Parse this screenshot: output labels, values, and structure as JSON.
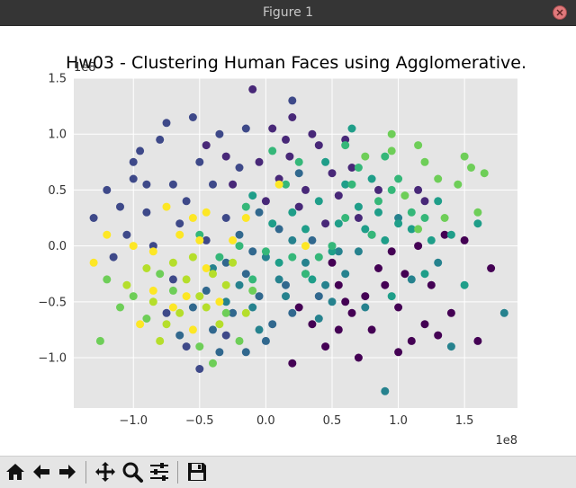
{
  "window": {
    "title": "Figure 1"
  },
  "chart_data": {
    "type": "scatter",
    "title": "Hw03 - Clustering Human Faces using Agglomerative.",
    "xlabel": "",
    "ylabel": "",
    "x_offset_text": "1e8",
    "y_offset_text": "1e8",
    "xlim": [
      -1.45,
      1.9
    ],
    "ylim": [
      -1.45,
      1.5
    ],
    "x_ticks": [
      -1.0,
      -0.5,
      0.0,
      0.5,
      1.0,
      1.5
    ],
    "x_tick_labels": [
      "−1.0",
      "−0.5",
      "0.0",
      "0.5",
      "1.0",
      "1.5"
    ],
    "y_ticks": [
      -1.0,
      -0.5,
      0.0,
      0.5,
      1.0,
      1.5
    ],
    "y_tick_labels": [
      "−1.0",
      "−0.5",
      "0.0",
      "0.5",
      "1.0",
      "1.5"
    ],
    "grid": true,
    "background": "#e5e5e5",
    "colormap": "viridis",
    "series": [
      {
        "color": "#440154",
        "points": [
          [
            0.55,
            -0.35
          ],
          [
            0.65,
            -0.6
          ],
          [
            0.8,
            -0.75
          ],
          [
            1.0,
            -0.55
          ],
          [
            1.2,
            -0.7
          ],
          [
            0.45,
            -0.9
          ],
          [
            0.7,
            -1.0
          ],
          [
            0.9,
            -0.35
          ],
          [
            1.05,
            -0.25
          ],
          [
            1.3,
            -0.8
          ],
          [
            1.6,
            -0.85
          ],
          [
            1.5,
            0.05
          ],
          [
            1.25,
            -0.35
          ],
          [
            1.1,
            -0.85
          ],
          [
            0.35,
            -0.7
          ],
          [
            0.2,
            -1.05
          ],
          [
            0.6,
            -0.5
          ],
          [
            0.85,
            -0.2
          ],
          [
            0.95,
            -0.05
          ],
          [
            1.15,
            0.0
          ],
          [
            1.35,
            0.1
          ],
          [
            0.5,
            -0.15
          ],
          [
            0.25,
            -0.55
          ],
          [
            0.75,
            -0.45
          ],
          [
            1.4,
            -0.6
          ],
          [
            1.7,
            -0.2
          ],
          [
            1.0,
            -0.95
          ],
          [
            0.55,
            -0.75
          ]
        ]
      },
      {
        "color": "#482878",
        "points": [
          [
            -0.1,
            1.4
          ],
          [
            0.2,
            1.15
          ],
          [
            0.4,
            0.9
          ],
          [
            -0.3,
            0.8
          ],
          [
            0.5,
            0.65
          ],
          [
            0.15,
            0.95
          ],
          [
            -0.05,
            0.75
          ],
          [
            0.3,
            0.5
          ],
          [
            0.65,
            0.7
          ],
          [
            0.05,
            1.05
          ],
          [
            0.25,
            0.35
          ],
          [
            -0.25,
            0.55
          ],
          [
            0.45,
            0.2
          ],
          [
            0.1,
            0.6
          ],
          [
            0.35,
            1.0
          ],
          [
            0.55,
            0.45
          ],
          [
            0.7,
            0.25
          ],
          [
            0.85,
            0.5
          ],
          [
            1.15,
            0.5
          ],
          [
            1.2,
            0.4
          ],
          [
            -0.45,
            0.9
          ],
          [
            0.0,
            0.4
          ],
          [
            0.18,
            0.8
          ],
          [
            0.6,
            0.95
          ]
        ]
      },
      {
        "color": "#3e4989",
        "points": [
          [
            -1.3,
            0.25
          ],
          [
            -1.2,
            0.5
          ],
          [
            -1.0,
            0.6
          ],
          [
            -0.9,
            0.3
          ],
          [
            -0.8,
            0.95
          ],
          [
            -0.7,
            0.55
          ],
          [
            -1.05,
            0.1
          ],
          [
            -0.95,
            0.85
          ],
          [
            -0.6,
            0.4
          ],
          [
            -0.75,
            1.1
          ],
          [
            -0.5,
            0.75
          ],
          [
            -0.85,
            0.0
          ],
          [
            -1.15,
            -0.1
          ],
          [
            -0.65,
            0.2
          ],
          [
            -0.4,
            0.55
          ],
          [
            -0.55,
            1.15
          ],
          [
            -0.3,
            0.25
          ],
          [
            -0.9,
            0.55
          ],
          [
            -0.35,
            1.0
          ],
          [
            -0.45,
            0.05
          ],
          [
            -1.0,
            0.75
          ],
          [
            -0.2,
            0.7
          ],
          [
            -0.7,
            -0.3
          ],
          [
            -0.6,
            -0.9
          ],
          [
            -0.5,
            -1.1
          ],
          [
            -0.3,
            -0.8
          ],
          [
            -0.75,
            -0.6
          ],
          [
            -1.1,
            0.35
          ],
          [
            0.2,
            1.3
          ],
          [
            -0.15,
            1.05
          ]
        ]
      },
      {
        "color": "#31688e",
        "points": [
          [
            -0.25,
            -0.6
          ],
          [
            -0.15,
            -0.25
          ],
          [
            -0.05,
            -0.45
          ],
          [
            0.05,
            -0.7
          ],
          [
            -0.35,
            -0.95
          ],
          [
            -0.1,
            -0.05
          ],
          [
            0.15,
            -0.35
          ],
          [
            -0.45,
            -0.4
          ],
          [
            -0.3,
            -0.15
          ],
          [
            0.0,
            -0.85
          ],
          [
            -0.55,
            -0.55
          ],
          [
            0.1,
            0.15
          ],
          [
            -0.2,
            0.1
          ],
          [
            0.3,
            -0.25
          ],
          [
            -0.4,
            -0.75
          ],
          [
            0.2,
            -0.6
          ],
          [
            -0.65,
            -0.8
          ],
          [
            -0.15,
            -0.95
          ],
          [
            0.4,
            -0.45
          ],
          [
            -0.05,
            0.3
          ],
          [
            0.35,
            0.05
          ],
          [
            0.25,
            0.65
          ]
        ]
      },
      {
        "color": "#26828e",
        "points": [
          [
            0.1,
            -0.3
          ],
          [
            -0.1,
            -0.55
          ],
          [
            0.3,
            -0.15
          ],
          [
            0.5,
            -0.5
          ],
          [
            -0.2,
            -0.35
          ],
          [
            0.0,
            -0.1
          ],
          [
            0.4,
            -0.65
          ],
          [
            0.6,
            -0.25
          ],
          [
            -0.3,
            -0.5
          ],
          [
            0.2,
            0.05
          ],
          [
            0.45,
            -0.35
          ],
          [
            0.7,
            -0.05
          ],
          [
            1.8,
            -0.6
          ],
          [
            1.4,
            -0.9
          ],
          [
            0.9,
            -1.3
          ],
          [
            0.8,
            0.1
          ],
          [
            1.0,
            0.25
          ],
          [
            1.3,
            -0.15
          ],
          [
            0.15,
            -0.45
          ],
          [
            -0.4,
            -0.2
          ],
          [
            0.55,
            -0.05
          ],
          [
            0.75,
            -0.55
          ],
          [
            1.1,
            -0.3
          ],
          [
            -0.05,
            -0.75
          ]
        ]
      },
      {
        "color": "#1f9e89",
        "points": [
          [
            0.3,
            0.15
          ],
          [
            0.5,
            -0.05
          ],
          [
            0.7,
            0.35
          ],
          [
            0.9,
            0.05
          ],
          [
            1.0,
            0.2
          ],
          [
            1.2,
            -0.25
          ],
          [
            1.4,
            0.1
          ],
          [
            0.6,
            0.55
          ],
          [
            0.85,
            0.3
          ],
          [
            1.1,
            0.15
          ],
          [
            0.4,
            0.4
          ],
          [
            0.2,
            0.3
          ],
          [
            -0.1,
            0.45
          ],
          [
            0.05,
            0.2
          ],
          [
            1.3,
            0.4
          ],
          [
            1.6,
            0.2
          ],
          [
            1.5,
            -0.35
          ],
          [
            0.95,
            -0.45
          ],
          [
            0.75,
            0.15
          ],
          [
            0.35,
            -0.3
          ],
          [
            0.55,
            0.2
          ],
          [
            0.1,
            -0.15
          ],
          [
            0.65,
            1.05
          ],
          [
            1.25,
            0.05
          ],
          [
            0.45,
            0.75
          ],
          [
            0.8,
            0.6
          ]
        ]
      },
      {
        "color": "#35b779",
        "points": [
          [
            0.9,
            0.8
          ],
          [
            1.0,
            0.6
          ],
          [
            0.85,
            0.4
          ],
          [
            0.7,
            0.7
          ],
          [
            1.1,
            0.3
          ],
          [
            0.6,
            0.25
          ],
          [
            0.8,
            0.1
          ],
          [
            0.5,
            0.0
          ],
          [
            0.3,
            -0.25
          ],
          [
            0.4,
            -0.1
          ],
          [
            0.0,
            -0.05
          ],
          [
            -0.2,
            0.0
          ],
          [
            -0.35,
            -0.1
          ],
          [
            -0.5,
            0.1
          ],
          [
            0.15,
            0.55
          ],
          [
            0.65,
            0.55
          ],
          [
            -0.15,
            0.35
          ],
          [
            0.05,
            0.85
          ],
          [
            0.25,
            0.75
          ],
          [
            0.6,
            0.9
          ],
          [
            0.95,
            0.5
          ],
          [
            1.2,
            0.25
          ],
          [
            -0.1,
            -0.3
          ],
          [
            0.2,
            -0.1
          ]
        ]
      },
      {
        "color": "#6ece58",
        "points": [
          [
            0.95,
            1.0
          ],
          [
            0.95,
            0.85
          ],
          [
            1.15,
            0.9
          ],
          [
            1.3,
            0.6
          ],
          [
            1.45,
            0.55
          ],
          [
            1.55,
            0.7
          ],
          [
            1.65,
            0.65
          ],
          [
            1.35,
            0.25
          ],
          [
            1.5,
            0.8
          ],
          [
            1.6,
            0.3
          ],
          [
            1.2,
            0.75
          ],
          [
            0.75,
            0.8
          ],
          [
            1.05,
            0.45
          ],
          [
            1.15,
            0.15
          ],
          [
            -1.2,
            -0.3
          ],
          [
            -1.1,
            -0.55
          ],
          [
            -1.0,
            -0.45
          ],
          [
            -0.8,
            -0.25
          ],
          [
            -0.9,
            -0.65
          ],
          [
            -1.25,
            -0.85
          ],
          [
            -0.5,
            -0.9
          ],
          [
            -0.3,
            -0.6
          ],
          [
            -0.1,
            -0.4
          ],
          [
            -0.7,
            -0.4
          ],
          [
            -0.4,
            -1.05
          ],
          [
            -0.2,
            -0.85
          ]
        ]
      },
      {
        "color": "#b5de2b",
        "points": [
          [
            -1.05,
            -0.35
          ],
          [
            -0.85,
            -0.5
          ],
          [
            -0.7,
            -0.15
          ],
          [
            -0.6,
            -0.3
          ],
          [
            -0.45,
            -0.55
          ],
          [
            -0.3,
            -0.35
          ],
          [
            -0.55,
            -0.1
          ],
          [
            -0.9,
            -0.2
          ],
          [
            -0.75,
            -0.7
          ],
          [
            -0.65,
            -0.6
          ],
          [
            -0.35,
            -0.7
          ],
          [
            -0.15,
            -0.6
          ],
          [
            -0.5,
            -0.45
          ],
          [
            -0.25,
            -0.15
          ],
          [
            -0.4,
            -0.25
          ],
          [
            -0.8,
            -0.85
          ]
        ]
      },
      {
        "color": "#fde725",
        "points": [
          [
            -1.2,
            0.1
          ],
          [
            -1.3,
            -0.15
          ],
          [
            -1.0,
            0.0
          ],
          [
            -0.85,
            -0.05
          ],
          [
            -0.75,
            0.35
          ],
          [
            -0.65,
            0.1
          ],
          [
            -0.55,
            0.25
          ],
          [
            -0.45,
            -0.2
          ],
          [
            -0.6,
            -0.45
          ],
          [
            -0.85,
            -0.4
          ],
          [
            -0.95,
            -0.7
          ],
          [
            -0.55,
            -0.75
          ],
          [
            -0.35,
            -0.5
          ],
          [
            -0.25,
            0.05
          ],
          [
            -0.15,
            0.25
          ],
          [
            0.3,
            0.0
          ],
          [
            0.1,
            0.55
          ],
          [
            -0.45,
            0.3
          ],
          [
            -0.7,
            -0.55
          ],
          [
            -0.5,
            0.05
          ]
        ]
      }
    ]
  },
  "toolbar": {
    "buttons": [
      {
        "name": "home-button",
        "icon": "home-icon"
      },
      {
        "name": "back-button",
        "icon": "arrow-left-icon"
      },
      {
        "name": "forward-button",
        "icon": "arrow-right-icon"
      },
      {
        "name": "pan-button",
        "icon": "move-icon"
      },
      {
        "name": "zoom-button",
        "icon": "zoom-icon"
      },
      {
        "name": "configure-subplots-button",
        "icon": "sliders-icon"
      },
      {
        "name": "save-button",
        "icon": "save-icon"
      }
    ]
  }
}
